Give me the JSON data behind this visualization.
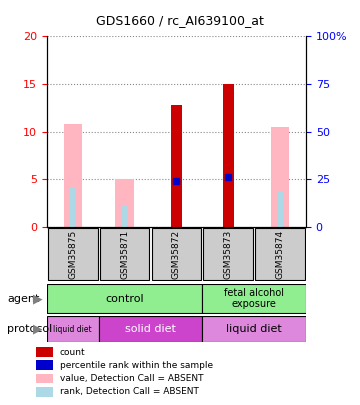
{
  "title": "GDS1660 / rc_AI639100_at",
  "samples": [
    "GSM35875",
    "GSM35871",
    "GSM35872",
    "GSM35873",
    "GSM35874"
  ],
  "red_bars": [
    0,
    0,
    12.8,
    15.0,
    0
  ],
  "pink_bars": [
    10.8,
    5.0,
    0,
    0,
    10.5
  ],
  "blue_dots": [
    0,
    0,
    4.8,
    5.2,
    0
  ],
  "light_blue_bars": [
    4.2,
    2.2,
    0,
    0,
    3.8
  ],
  "absent_red": [
    true,
    true,
    false,
    false,
    true
  ],
  "absent_blue": [
    true,
    true,
    false,
    false,
    true
  ],
  "ylim": [
    0,
    20
  ],
  "yticks": [
    0,
    5,
    10,
    15,
    20
  ],
  "y2ticks_labels": [
    "0",
    "25",
    "50",
    "75",
    "100%"
  ],
  "legend_items": [
    {
      "color": "#CC0000",
      "label": "count"
    },
    {
      "color": "#0000CC",
      "label": "percentile rank within the sample"
    },
    {
      "color": "#FFB6C1",
      "label": "value, Detection Call = ABSENT"
    },
    {
      "color": "#ADD8E6",
      "label": "rank, Detection Call = ABSENT"
    }
  ],
  "grid_color": "#888888",
  "bar_width": 0.35,
  "sample_box_color": "#CCCCCC"
}
